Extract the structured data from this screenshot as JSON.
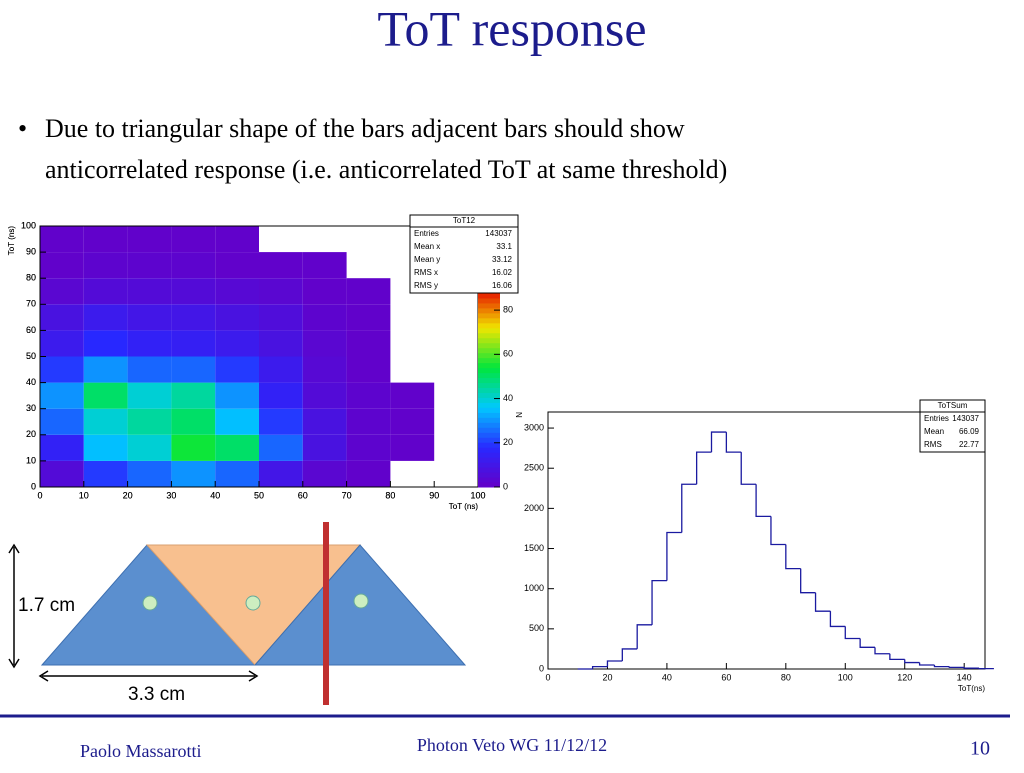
{
  "slide": {
    "title": "ToT response",
    "bullet": [
      "Due to triangular shape of the bars adjacent bars should show",
      "anticorrelated response (i.e. anticorrelated ToT at same threshold)"
    ],
    "footer_left": "Paolo Massarotti",
    "footer_center": "Photon Veto WG 11/12/12",
    "page": "10"
  },
  "diagram": {
    "height_label": "1.7 cm",
    "width_label": "3.3 cm"
  },
  "chart_data": [
    {
      "type": "heatmap",
      "xlabel": "ToT (ns)",
      "ylabel": "ToT (ns)",
      "xbins": [
        0,
        10,
        20,
        30,
        40,
        50,
        60,
        70,
        80,
        90,
        100
      ],
      "ybins": [
        0,
        10,
        20,
        30,
        40,
        50,
        60,
        70,
        80,
        90,
        100
      ],
      "z": [
        [
          5,
          20,
          25,
          30,
          25,
          10,
          3,
          1,
          0,
          0
        ],
        [
          15,
          35,
          40,
          55,
          50,
          25,
          8,
          2,
          1,
          0
        ],
        [
          25,
          40,
          45,
          50,
          35,
          20,
          8,
          2,
          1,
          0
        ],
        [
          30,
          50,
          40,
          45,
          30,
          15,
          5,
          2,
          1,
          0
        ],
        [
          20,
          30,
          25,
          25,
          20,
          12,
          4,
          1,
          0,
          0
        ],
        [
          12,
          18,
          15,
          14,
          12,
          8,
          3,
          1,
          0,
          0
        ],
        [
          8,
          12,
          10,
          10,
          8,
          6,
          2,
          1,
          0,
          0
        ],
        [
          3,
          5,
          5,
          5,
          4,
          3,
          1,
          1,
          0,
          0
        ],
        [
          1,
          2,
          2,
          2,
          1,
          1,
          1,
          0,
          0,
          0
        ],
        [
          1,
          1,
          1,
          1,
          1,
          0,
          0,
          0,
          0,
          0
        ]
      ],
      "xlim": [
        0,
        100
      ],
      "ylim": [
        0,
        100
      ],
      "xticks": [
        0,
        10,
        20,
        30,
        40,
        50,
        60,
        70,
        80,
        90,
        100
      ],
      "yticks": [
        0,
        10,
        20,
        30,
        40,
        50,
        60,
        70,
        80,
        90,
        100
      ],
      "zlim": [
        0,
        90
      ],
      "zticks": [
        0,
        20,
        40,
        60,
        80
      ],
      "stats_title": "ToT12",
      "stats": [
        [
          "Entries",
          143037
        ],
        [
          "Mean x",
          33.1
        ],
        [
          "Mean y",
          33.12
        ],
        [
          "RMS x",
          16.02
        ],
        [
          "RMS y",
          16.06
        ]
      ]
    },
    {
      "type": "histogram",
      "xlabel": "ToT(ns)",
      "ylabel": "N",
      "color": "#1a1aa0",
      "bins": [
        10,
        15,
        20,
        25,
        30,
        35,
        40,
        45,
        50,
        55,
        60,
        65,
        70,
        75,
        80,
        85,
        90,
        95,
        100,
        105,
        110,
        115,
        120,
        125,
        130,
        135,
        140,
        145,
        150
      ],
      "values": [
        0,
        30,
        100,
        250,
        550,
        1100,
        1700,
        2300,
        2700,
        2950,
        2700,
        2300,
        1900,
        1550,
        1250,
        950,
        720,
        530,
        380,
        270,
        190,
        120,
        80,
        50,
        30,
        20,
        10,
        5
      ],
      "xlim": [
        0,
        147
      ],
      "ylim": [
        0,
        3200
      ],
      "xticks": [
        0,
        20,
        40,
        60,
        80,
        100,
        120,
        140
      ],
      "yticks": [
        0,
        500,
        1000,
        1500,
        2000,
        2500,
        3000
      ],
      "stats_title": "ToTSum",
      "stats": [
        [
          "Entries",
          143037
        ],
        [
          "Mean",
          66.09
        ],
        [
          "RMS",
          22.77
        ]
      ]
    }
  ]
}
